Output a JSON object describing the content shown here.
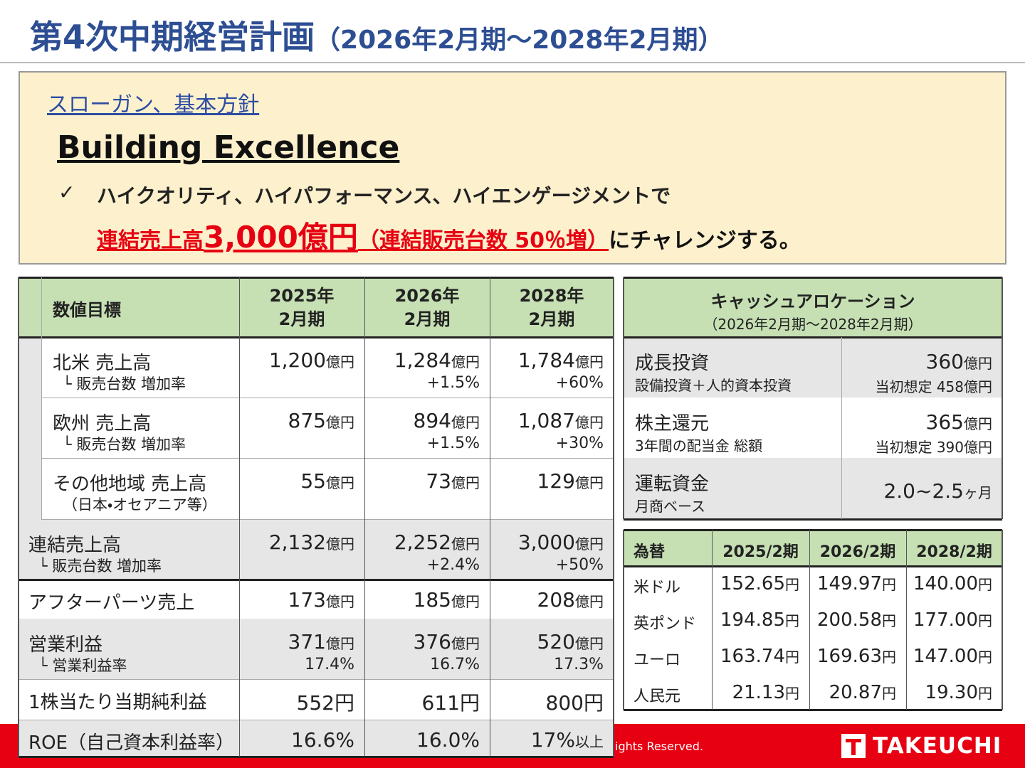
{
  "title": "第4次中期経営計画",
  "title_period": "（2026年2月期～2028年2月期）",
  "slogan": {
    "heading": "スローガン、基本方針",
    "name": "Building Excellence",
    "bullet": "✓",
    "line1": "ハイクオリティ、ハイパフォーマンス、ハイエンゲージメントで",
    "line2": [
      "連結売上高 ",
      "3,000億円",
      "（連結販売台数 50％増）",
      "にチャレンジする。"
    ]
  },
  "targets": {
    "header": [
      "数値目標",
      "2025年\n2月期",
      "2026年\n2月期",
      "2028年\n2月期"
    ],
    "rows": [
      {
        "label": "北米 売上高",
        "sub": "└ 販売台数 増加率",
        "cells": [
          {
            "value": "1,200",
            "unit": "億円"
          },
          {
            "value": "1,284",
            "unit": "億円",
            "sub": "+1.5%"
          },
          {
            "value": "1,784",
            "unit": "億円",
            "sub": "+60%"
          }
        ]
      },
      {
        "label": "欧州 売上高",
        "sub": "└ 販売台数 増加率",
        "cells": [
          {
            "value": "875",
            "unit": "億円"
          },
          {
            "value": "894",
            "unit": "億円",
            "sub": "+1.5%"
          },
          {
            "value": "1,087",
            "unit": "億円",
            "sub": "+30%"
          }
        ]
      },
      {
        "label": "その他地域 売上高",
        "sub": "（日本・オセアニア等）",
        "cells": [
          {
            "value": "55",
            "unit": "億円"
          },
          {
            "value": "73",
            "unit": "億円"
          },
          {
            "value": "129",
            "unit": "億円"
          }
        ]
      },
      {
        "label": "連結売上高",
        "sub": "└ 販売台数 増加率",
        "cells": [
          {
            "value": "2,132",
            "unit": "億円"
          },
          {
            "value": "2,252",
            "unit": "億円",
            "sub": "+2.4%"
          },
          {
            "value": "3,000",
            "unit": "億円",
            "sub": "+50%"
          }
        ]
      },
      {
        "label": "アフターパーツ売上",
        "cells": [
          {
            "value": "173",
            "unit": "億円"
          },
          {
            "value": "185",
            "unit": "億円"
          },
          {
            "value": "208",
            "unit": "億円"
          }
        ]
      },
      {
        "label": "営業利益",
        "sub": "└ 営業利益率",
        "cells": [
          {
            "value": "371",
            "unit": "億円",
            "sub": "17.4%"
          },
          {
            "value": "376",
            "unit": "億円",
            "sub": "16.7%"
          },
          {
            "value": "520",
            "unit": "億円",
            "sub": "17.3%"
          }
        ]
      },
      {
        "label": "1株当たり当期純利益",
        "cells": [
          {
            "value": "552円"
          },
          {
            "value": "611円"
          },
          {
            "value": "800円"
          }
        ]
      },
      {
        "label": "ROE（自己資本利益率）",
        "cells": [
          {
            "value": "16.6%"
          },
          {
            "value": "16.0%"
          },
          {
            "value": "17%",
            "unit": "以上"
          }
        ]
      }
    ]
  },
  "cash": {
    "header": [
      "キャッシュアロケーション",
      "（2026年2月期～2028年2月期）"
    ],
    "rows": [
      {
        "label": "成長投資",
        "sub": "設備投資＋人的資本投資",
        "value": "360",
        "unit": "億円",
        "note": "当初想定 458億円"
      },
      {
        "label": "株主還元",
        "sub": "3年間の配当金 総額",
        "value": "365",
        "unit": "億円",
        "note": "当初想定 390億円"
      },
      {
        "label": "運転資金",
        "sub": "月商ベース",
        "value": "2.0~2.5",
        "unit": "ヶ月"
      }
    ]
  },
  "fx": {
    "header": [
      "為替",
      "2025/2期",
      "2026/2期",
      "2028/2期"
    ],
    "rows": [
      {
        "label": "米ドル",
        "cells": [
          [
            "152.65",
            "円"
          ],
          [
            "149.97",
            "円"
          ],
          [
            "140.00",
            "円"
          ]
        ]
      },
      {
        "label": "英ポンド",
        "cells": [
          [
            "194.85",
            "円"
          ],
          [
            "200.58",
            "円"
          ],
          [
            "177.00",
            "円"
          ]
        ]
      },
      {
        "label": "ユーロ",
        "cells": [
          [
            "163.74",
            "円"
          ],
          [
            "169.63",
            "円"
          ],
          [
            "147.00",
            "円"
          ]
        ]
      },
      {
        "label": "人民元",
        "cells": [
          [
            "21.13",
            "円"
          ],
          [
            "20.87",
            "円"
          ],
          [
            "19.30",
            "円"
          ]
        ]
      }
    ]
  },
  "footer": {
    "copyright": "ights Reserved.",
    "logo": "TAKEUCHI"
  }
}
